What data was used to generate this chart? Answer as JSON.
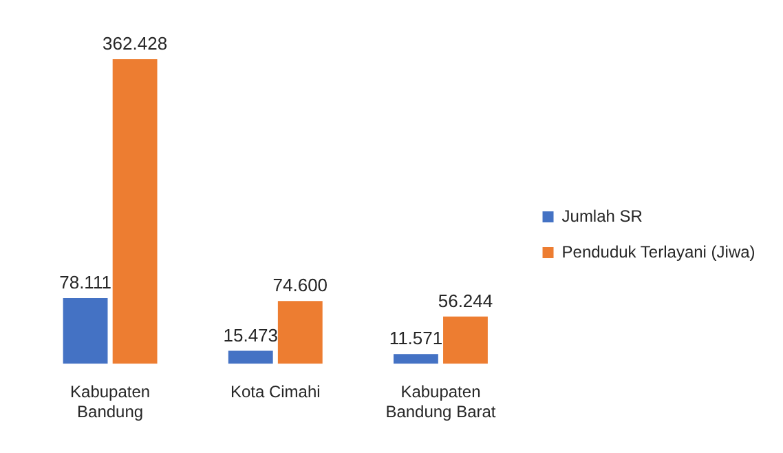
{
  "chart_data": {
    "type": "bar",
    "categories": [
      "Kabupaten\nBandung",
      "Kota Cimahi",
      "Kabupaten\nBandung Barat"
    ],
    "series": [
      {
        "name": "Jumlah SR",
        "color": "#4472c4",
        "values": [
          78111,
          15473,
          11571
        ],
        "value_labels": [
          "78.111",
          "15.473",
          "11.571"
        ]
      },
      {
        "name": "Penduduk Terlayani (Jiwa)",
        "color": "#ed7d31",
        "values": [
          362428,
          74600,
          56244
        ],
        "value_labels": [
          "362.428",
          "74.600",
          "56.244"
        ]
      }
    ],
    "legend": "right",
    "grid": false,
    "tick_labels": "x"
  }
}
